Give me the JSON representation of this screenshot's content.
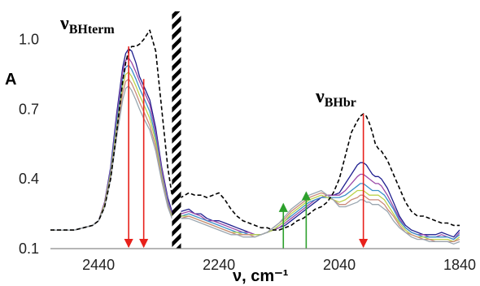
{
  "chart_data": {
    "type": "line",
    "xlabel": "ν, cm⁻¹",
    "ylabel": "A",
    "xlim": [
      2520,
      1840
    ],
    "ylim": [
      0.1,
      1.1
    ],
    "x_reversed": true,
    "x_ticks": [
      "2440",
      "2240",
      "2040",
      "1840"
    ],
    "y_ticks": [
      "0.1",
      "0.4",
      "0.7",
      "1.0"
    ],
    "annotations": {
      "bh_term": {
        "base": "ν",
        "sub": "BHterm"
      },
      "bh_br": {
        "base": "ν",
        "sub": "BHbr"
      }
    },
    "gap_region": [
      2318,
      2303
    ],
    "colors": {
      "dashed": "#000000",
      "arrow_decrease": "#e8211b",
      "arrow_increase": "#2ca02c",
      "spectra": [
        "#1f1f8f",
        "#2a2aa8",
        "#4040c0",
        "#5a3fa0",
        "#7a3f9f",
        "#9a4aa8",
        "#b65aa6",
        "#2f7fbf",
        "#3a8fc8",
        "#4aa0cc",
        "#3fae9f",
        "#5dbb7a",
        "#8cc65e",
        "#bcd24d",
        "#d9c84a",
        "#e0b04a",
        "#d89a5a",
        "#c98a7a",
        "#b0a0c0",
        "#9aa6b0"
      ]
    },
    "series": [
      {
        "style": "dashed",
        "x": [
          2520,
          2480,
          2465,
          2450,
          2440,
          2430,
          2420,
          2410,
          2400,
          2395,
          2390,
          2385,
          2378,
          2372,
          2365,
          2355,
          2345,
          2335,
          2325,
          2318,
          2303,
          2290,
          2280,
          2270,
          2260,
          2250,
          2240,
          2230,
          2220,
          2210,
          2200,
          2190,
          2180,
          2170,
          2160,
          2150,
          2140,
          2130,
          2120,
          2110,
          2100,
          2090,
          2080,
          2070,
          2060,
          2050,
          2040,
          2030,
          2020,
          2010,
          2005,
          2000,
          1995,
          1990,
          1985,
          1980,
          1975,
          1970,
          1965,
          1960,
          1950,
          1940,
          1930,
          1920,
          1910,
          1900,
          1890,
          1880,
          1870,
          1860,
          1850,
          1840
        ],
        "y": [
          0.18,
          0.18,
          0.19,
          0.2,
          0.22,
          0.28,
          0.4,
          0.6,
          0.82,
          0.9,
          0.95,
          0.97,
          0.97,
          0.98,
          1.0,
          1.04,
          0.95,
          0.7,
          0.45,
          0.33,
          0.32,
          0.34,
          0.33,
          0.33,
          0.32,
          0.33,
          0.34,
          0.31,
          0.27,
          0.24,
          0.22,
          0.21,
          0.2,
          0.19,
          0.19,
          0.18,
          0.18,
          0.19,
          0.2,
          0.22,
          0.23,
          0.25,
          0.27,
          0.28,
          0.3,
          0.34,
          0.4,
          0.5,
          0.6,
          0.65,
          0.67,
          0.68,
          0.67,
          0.64,
          0.6,
          0.55,
          0.53,
          0.52,
          0.5,
          0.48,
          0.42,
          0.36,
          0.3,
          0.26,
          0.24,
          0.24,
          0.23,
          0.22,
          0.21,
          0.21,
          0.2,
          0.2
        ]
      },
      {
        "style": "solid",
        "color_index": 0,
        "x": [
          2520,
          2480,
          2465,
          2450,
          2440,
          2430,
          2420,
          2410,
          2400,
          2395,
          2390,
          2385,
          2378,
          2372,
          2365,
          2355,
          2345,
          2335,
          2325,
          2318,
          2303,
          2290,
          2280,
          2270,
          2260,
          2250,
          2240,
          2230,
          2220,
          2210,
          2200,
          2190,
          2180,
          2170,
          2160,
          2150,
          2140,
          2130,
          2120,
          2110,
          2100,
          2090,
          2080,
          2070,
          2060,
          2050,
          2040,
          2030,
          2020,
          2010,
          2005,
          2000,
          1995,
          1990,
          1985,
          1980,
          1975,
          1970,
          1965,
          1960,
          1950,
          1940,
          1930,
          1920,
          1910,
          1900,
          1890,
          1880,
          1870,
          1860,
          1850,
          1840
        ],
        "y": [
          0.18,
          0.18,
          0.19,
          0.2,
          0.22,
          0.3,
          0.45,
          0.68,
          0.88,
          0.94,
          0.96,
          0.95,
          0.9,
          0.84,
          0.8,
          0.74,
          0.62,
          0.45,
          0.32,
          0.26,
          0.26,
          0.27,
          0.25,
          0.25,
          0.23,
          0.22,
          0.22,
          0.21,
          0.2,
          0.19,
          0.18,
          0.17,
          0.16,
          0.16,
          0.17,
          0.18,
          0.19,
          0.2,
          0.22,
          0.24,
          0.26,
          0.28,
          0.3,
          0.32,
          0.33,
          0.33,
          0.34,
          0.38,
          0.42,
          0.46,
          0.47,
          0.47,
          0.46,
          0.44,
          0.42,
          0.41,
          0.41,
          0.4,
          0.38,
          0.36,
          0.3,
          0.24,
          0.2,
          0.18,
          0.17,
          0.16,
          0.16,
          0.16,
          0.17,
          0.16,
          0.15,
          0.18
        ]
      },
      {
        "style": "solid",
        "color_index": 5,
        "x": [
          2520,
          2480,
          2465,
          2450,
          2440,
          2430,
          2420,
          2410,
          2400,
          2395,
          2390,
          2385,
          2378,
          2372,
          2365,
          2355,
          2345,
          2335,
          2325,
          2318,
          2303,
          2290,
          2280,
          2270,
          2260,
          2250,
          2240,
          2230,
          2220,
          2210,
          2200,
          2190,
          2180,
          2170,
          2160,
          2150,
          2140,
          2130,
          2120,
          2110,
          2100,
          2090,
          2080,
          2070,
          2060,
          2050,
          2040,
          2030,
          2020,
          2010,
          2005,
          2000,
          1995,
          1990,
          1985,
          1980,
          1975,
          1970,
          1965,
          1960,
          1950,
          1940,
          1930,
          1920,
          1910,
          1900,
          1890,
          1880,
          1870,
          1860,
          1850,
          1840
        ],
        "y": [
          0.18,
          0.18,
          0.19,
          0.2,
          0.22,
          0.3,
          0.44,
          0.66,
          0.86,
          0.91,
          0.92,
          0.9,
          0.86,
          0.82,
          0.78,
          0.72,
          0.6,
          0.44,
          0.31,
          0.25,
          0.25,
          0.26,
          0.25,
          0.24,
          0.22,
          0.22,
          0.21,
          0.2,
          0.19,
          0.18,
          0.17,
          0.17,
          0.16,
          0.16,
          0.17,
          0.18,
          0.19,
          0.21,
          0.23,
          0.25,
          0.27,
          0.29,
          0.31,
          0.32,
          0.33,
          0.33,
          0.33,
          0.35,
          0.38,
          0.41,
          0.42,
          0.42,
          0.41,
          0.4,
          0.39,
          0.38,
          0.38,
          0.37,
          0.35,
          0.33,
          0.28,
          0.23,
          0.19,
          0.17,
          0.16,
          0.16,
          0.15,
          0.15,
          0.16,
          0.15,
          0.14,
          0.17
        ]
      },
      {
        "style": "solid",
        "color_index": 8,
        "x": [
          2520,
          2480,
          2465,
          2450,
          2440,
          2430,
          2420,
          2410,
          2400,
          2395,
          2390,
          2385,
          2378,
          2372,
          2365,
          2355,
          2345,
          2335,
          2325,
          2318,
          2303,
          2290,
          2280,
          2270,
          2260,
          2250,
          2240,
          2230,
          2220,
          2210,
          2200,
          2190,
          2180,
          2170,
          2160,
          2150,
          2140,
          2130,
          2120,
          2110,
          2100,
          2090,
          2080,
          2070,
          2060,
          2050,
          2040,
          2030,
          2020,
          2010,
          2005,
          2000,
          1995,
          1990,
          1985,
          1980,
          1975,
          1970,
          1965,
          1960,
          1950,
          1940,
          1930,
          1920,
          1910,
          1900,
          1890,
          1880,
          1870,
          1860,
          1850,
          1840
        ],
        "y": [
          0.18,
          0.18,
          0.19,
          0.2,
          0.22,
          0.29,
          0.43,
          0.64,
          0.83,
          0.88,
          0.89,
          0.87,
          0.83,
          0.79,
          0.75,
          0.69,
          0.58,
          0.42,
          0.3,
          0.24,
          0.24,
          0.25,
          0.24,
          0.23,
          0.22,
          0.21,
          0.2,
          0.19,
          0.18,
          0.17,
          0.17,
          0.16,
          0.16,
          0.16,
          0.17,
          0.18,
          0.2,
          0.22,
          0.24,
          0.26,
          0.28,
          0.3,
          0.31,
          0.32,
          0.32,
          0.32,
          0.32,
          0.33,
          0.35,
          0.37,
          0.38,
          0.38,
          0.37,
          0.36,
          0.35,
          0.35,
          0.35,
          0.34,
          0.33,
          0.31,
          0.27,
          0.22,
          0.19,
          0.17,
          0.16,
          0.15,
          0.15,
          0.15,
          0.15,
          0.15,
          0.14,
          0.16
        ]
      },
      {
        "style": "solid",
        "color_index": 13,
        "x": [
          2520,
          2480,
          2465,
          2450,
          2440,
          2430,
          2420,
          2410,
          2400,
          2395,
          2390,
          2385,
          2378,
          2372,
          2365,
          2355,
          2345,
          2335,
          2325,
          2318,
          2303,
          2290,
          2280,
          2270,
          2260,
          2250,
          2240,
          2230,
          2220,
          2210,
          2200,
          2190,
          2180,
          2170,
          2160,
          2150,
          2140,
          2130,
          2120,
          2110,
          2100,
          2090,
          2080,
          2070,
          2060,
          2050,
          2040,
          2030,
          2020,
          2010,
          2005,
          2000,
          1995,
          1990,
          1985,
          1980,
          1975,
          1970,
          1965,
          1960,
          1950,
          1940,
          1930,
          1920,
          1910,
          1900,
          1890,
          1880,
          1870,
          1860,
          1850,
          1840
        ],
        "y": [
          0.18,
          0.18,
          0.19,
          0.2,
          0.22,
          0.29,
          0.42,
          0.62,
          0.8,
          0.85,
          0.86,
          0.84,
          0.8,
          0.76,
          0.72,
          0.66,
          0.56,
          0.41,
          0.29,
          0.24,
          0.24,
          0.24,
          0.23,
          0.22,
          0.21,
          0.2,
          0.19,
          0.18,
          0.17,
          0.17,
          0.16,
          0.16,
          0.16,
          0.16,
          0.17,
          0.18,
          0.2,
          0.22,
          0.25,
          0.27,
          0.29,
          0.31,
          0.32,
          0.33,
          0.32,
          0.31,
          0.3,
          0.31,
          0.33,
          0.35,
          0.35,
          0.35,
          0.34,
          0.33,
          0.33,
          0.33,
          0.33,
          0.32,
          0.31,
          0.29,
          0.25,
          0.21,
          0.18,
          0.16,
          0.15,
          0.15,
          0.14,
          0.14,
          0.14,
          0.14,
          0.13,
          0.15
        ]
      },
      {
        "style": "solid",
        "color_index": 17,
        "x": [
          2520,
          2480,
          2465,
          2450,
          2440,
          2430,
          2420,
          2410,
          2400,
          2395,
          2390,
          2385,
          2378,
          2372,
          2365,
          2355,
          2345,
          2335,
          2325,
          2318,
          2303,
          2290,
          2280,
          2270,
          2260,
          2250,
          2240,
          2230,
          2220,
          2210,
          2200,
          2190,
          2180,
          2170,
          2160,
          2150,
          2140,
          2130,
          2120,
          2110,
          2100,
          2090,
          2080,
          2070,
          2060,
          2050,
          2040,
          2030,
          2020,
          2010,
          2005,
          2000,
          1995,
          1990,
          1985,
          1980,
          1975,
          1970,
          1965,
          1960,
          1950,
          1940,
          1930,
          1920,
          1910,
          1900,
          1890,
          1880,
          1870,
          1860,
          1850,
          1840
        ],
        "y": [
          0.18,
          0.18,
          0.19,
          0.2,
          0.22,
          0.28,
          0.41,
          0.6,
          0.77,
          0.82,
          0.83,
          0.81,
          0.77,
          0.73,
          0.69,
          0.63,
          0.54,
          0.4,
          0.29,
          0.23,
          0.23,
          0.24,
          0.23,
          0.22,
          0.21,
          0.2,
          0.19,
          0.18,
          0.17,
          0.16,
          0.16,
          0.16,
          0.15,
          0.16,
          0.17,
          0.19,
          0.21,
          0.23,
          0.26,
          0.28,
          0.3,
          0.32,
          0.33,
          0.34,
          0.33,
          0.31,
          0.29,
          0.29,
          0.31,
          0.32,
          0.33,
          0.33,
          0.32,
          0.31,
          0.31,
          0.31,
          0.31,
          0.3,
          0.29,
          0.27,
          0.24,
          0.2,
          0.17,
          0.16,
          0.15,
          0.14,
          0.14,
          0.13,
          0.13,
          0.13,
          0.13,
          0.14
        ]
      },
      {
        "style": "solid",
        "color_index": 19,
        "x": [
          2520,
          2480,
          2465,
          2450,
          2440,
          2430,
          2420,
          2410,
          2400,
          2395,
          2390,
          2385,
          2378,
          2372,
          2365,
          2355,
          2345,
          2335,
          2325,
          2318,
          2303,
          2290,
          2280,
          2270,
          2260,
          2250,
          2240,
          2230,
          2220,
          2210,
          2200,
          2190,
          2180,
          2170,
          2160,
          2150,
          2140,
          2130,
          2120,
          2110,
          2100,
          2090,
          2080,
          2070,
          2060,
          2050,
          2040,
          2030,
          2020,
          2010,
          2005,
          2000,
          1995,
          1990,
          1985,
          1980,
          1975,
          1970,
          1965,
          1960,
          1950,
          1940,
          1930,
          1920,
          1910,
          1900,
          1890,
          1880,
          1870,
          1860,
          1850,
          1840
        ],
        "y": [
          0.18,
          0.18,
          0.19,
          0.2,
          0.22,
          0.28,
          0.4,
          0.58,
          0.74,
          0.79,
          0.8,
          0.78,
          0.74,
          0.7,
          0.66,
          0.61,
          0.52,
          0.39,
          0.28,
          0.23,
          0.23,
          0.23,
          0.22,
          0.21,
          0.2,
          0.19,
          0.18,
          0.17,
          0.16,
          0.16,
          0.15,
          0.15,
          0.15,
          0.16,
          0.17,
          0.19,
          0.21,
          0.24,
          0.27,
          0.29,
          0.31,
          0.33,
          0.34,
          0.35,
          0.33,
          0.31,
          0.28,
          0.28,
          0.29,
          0.3,
          0.31,
          0.31,
          0.3,
          0.3,
          0.29,
          0.29,
          0.29,
          0.28,
          0.27,
          0.26,
          0.22,
          0.19,
          0.17,
          0.15,
          0.14,
          0.14,
          0.13,
          0.13,
          0.13,
          0.13,
          0.12,
          0.13
        ]
      }
    ],
    "arrows": [
      {
        "x": 2390,
        "y_from": 0.97,
        "y_to": 0.1,
        "kind": "decrease"
      },
      {
        "x": 2365,
        "y_from": 0.83,
        "y_to": 0.1,
        "kind": "decrease"
      },
      {
        "x": 2133,
        "y_from": 0.1,
        "y_to": 0.3,
        "kind": "increase"
      },
      {
        "x": 2095,
        "y_from": 0.1,
        "y_to": 0.35,
        "kind": "increase"
      },
      {
        "x": 2000,
        "y_from": 0.68,
        "y_to": 0.1,
        "kind": "decrease"
      }
    ]
  }
}
